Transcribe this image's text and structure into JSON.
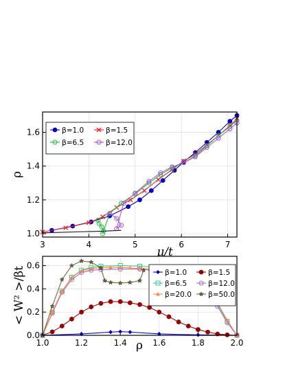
{
  "chart_data": [
    {
      "type": "line",
      "xlabel": "μ/t",
      "ylabel": "ρ",
      "xlim": [
        3.0,
        7.2
      ],
      "ylim": [
        0.98,
        1.72
      ],
      "xticks": [
        "3",
        "4",
        "5",
        "6",
        "7"
      ],
      "yticks": [
        "1.0",
        "1.2",
        "1.4",
        "1.6"
      ],
      "grid": true,
      "legend_position": "top-left",
      "series": [
        {
          "name": "β=1.0",
          "color": "#0000cc",
          "marker": "circle-filled",
          "x": [
            3.2,
            3.65,
            4.05,
            4.45,
            4.85,
            5.1,
            5.35,
            5.6,
            5.85,
            6.05,
            6.3,
            6.55,
            6.8,
            7.05,
            7.2
          ],
          "y": [
            1.02,
            1.045,
            1.07,
            1.105,
            1.16,
            1.2,
            1.255,
            1.315,
            1.375,
            1.425,
            1.48,
            1.54,
            1.6,
            1.665,
            1.7
          ]
        },
        {
          "name": "β=1.5",
          "color": "#ee2222",
          "marker": "x",
          "x": [
            3.0,
            3.5,
            4.0,
            4.3,
            4.6,
            4.9,
            5.2,
            5.5,
            5.8,
            6.05,
            6.3,
            6.55,
            6.8,
            7.05,
            7.2
          ],
          "y": [
            1.01,
            1.035,
            1.065,
            1.1,
            1.155,
            1.2,
            1.255,
            1.32,
            1.38,
            1.43,
            1.47,
            1.525,
            1.58,
            1.64,
            1.68
          ]
        },
        {
          "name": "β=6.5",
          "color": "#22bb44",
          "marker": "circle-open",
          "x": [
            4.2,
            4.22,
            4.28,
            4.32,
            4.3,
            4.45,
            4.7,
            5.0,
            5.3,
            5.55,
            5.8,
            6.05,
            6.3,
            6.55,
            6.8,
            7.05,
            7.2
          ],
          "y": [
            1.08,
            1.06,
            1.04,
            1.015,
            1.0,
            1.12,
            1.18,
            1.235,
            1.3,
            1.35,
            1.39,
            1.42,
            1.46,
            1.52,
            1.58,
            1.635,
            1.67
          ]
        },
        {
          "name": "β=12.0",
          "color": "#aa55dd",
          "marker": "circle-open",
          "x": [
            4.45,
            4.6,
            4.7,
            4.6,
            4.75,
            5.0,
            5.3,
            5.55,
            5.8,
            6.05,
            6.3,
            6.55,
            6.8,
            7.05,
            7.2
          ],
          "y": [
            1.12,
            1.09,
            1.05,
            1.03,
            1.18,
            1.24,
            1.31,
            1.36,
            1.395,
            1.42,
            1.455,
            1.51,
            1.565,
            1.62,
            1.655
          ]
        },
        {
          "name": "",
          "color": "#111111",
          "marker": "none",
          "x": [
            3.0,
            4.3,
            4.7
          ],
          "y": [
            1.005,
            1.015,
            1.02
          ]
        }
      ]
    },
    {
      "type": "line",
      "xlabel": "ρ",
      "ylabel": "< W² >/βt",
      "xlim": [
        1.0,
        2.0
      ],
      "ylim": [
        0.0,
        0.68
      ],
      "xticks": [
        "1.0",
        "1.2",
        "1.4",
        "1.6",
        "1.8",
        "2.0"
      ],
      "yticks": [
        "0.0",
        "0.2",
        "0.4",
        "0.6"
      ],
      "grid": true,
      "legend_position": "bottom-right",
      "series": [
        {
          "name": "β=1.0",
          "color": "#0000cc",
          "marker": "diamond-filled",
          "x": [
            1.0,
            1.2,
            1.35,
            1.4,
            1.45,
            1.6,
            1.8,
            2.0
          ],
          "y": [
            0.0,
            0.012,
            0.028,
            0.032,
            0.028,
            0.012,
            0.004,
            0.0
          ]
        },
        {
          "name": "β=1.5",
          "color": "#990000",
          "marker": "circle-filled",
          "x": [
            1.0,
            1.05,
            1.1,
            1.15,
            1.2,
            1.25,
            1.3,
            1.35,
            1.4,
            1.45,
            1.5,
            1.55,
            1.6,
            1.65,
            1.7,
            1.75,
            1.8,
            1.85,
            1.9,
            1.95,
            2.0
          ],
          "y": [
            0.0,
            0.03,
            0.08,
            0.14,
            0.2,
            0.245,
            0.275,
            0.29,
            0.29,
            0.28,
            0.265,
            0.24,
            0.2,
            0.16,
            0.115,
            0.08,
            0.05,
            0.028,
            0.012,
            0.004,
            0.0
          ]
        },
        {
          "name": "β=6.5",
          "color": "#33cc88",
          "marker": "square-open",
          "x": [
            1.0,
            1.05,
            1.1,
            1.15,
            1.2,
            1.25,
            1.3,
            1.4,
            1.5,
            1.6,
            1.7,
            1.8,
            1.85,
            1.9,
            1.95,
            2.0
          ],
          "y": [
            0.0,
            0.2,
            0.38,
            0.5,
            0.56,
            0.585,
            0.595,
            0.6,
            0.595,
            0.58,
            0.56,
            0.5,
            0.4,
            0.27,
            0.12,
            0.0
          ]
        },
        {
          "name": "β=12.0",
          "color": "#aa66dd",
          "marker": "circle-open",
          "x": [
            1.0,
            1.05,
            1.1,
            1.15,
            1.2,
            1.25,
            1.3,
            1.4,
            1.5,
            1.6,
            1.7,
            1.8,
            1.85,
            1.9,
            1.95,
            2.0
          ],
          "y": [
            0.0,
            0.19,
            0.37,
            0.48,
            0.54,
            0.56,
            0.565,
            0.57,
            0.57,
            0.56,
            0.545,
            0.48,
            0.38,
            0.25,
            0.11,
            0.0
          ]
        },
        {
          "name": "β=20.0",
          "color": "#ff8844",
          "marker": "triangle-filled",
          "x": [
            1.0,
            1.05,
            1.1,
            1.15,
            1.2,
            1.25,
            1.3,
            1.35,
            1.4,
            1.45,
            1.5,
            1.55,
            1.6,
            1.65,
            1.7,
            1.75,
            1.8,
            1.85,
            1.9,
            1.95,
            2.0
          ],
          "y": [
            0.0,
            0.2,
            0.38,
            0.5,
            0.555,
            0.575,
            0.58,
            0.585,
            0.585,
            0.58,
            0.575,
            0.57,
            0.565,
            0.555,
            0.54,
            0.52,
            0.48,
            0.4,
            0.28,
            0.13,
            0.0
          ]
        },
        {
          "name": "β=50.0",
          "color": "#776633",
          "marker": "star",
          "x": [
            1.0,
            1.05,
            1.1,
            1.15,
            1.2,
            1.25,
            1.3,
            1.32,
            1.35,
            1.4,
            1.45,
            1.5,
            1.52
          ],
          "y": [
            0.0,
            0.25,
            0.48,
            0.6,
            0.64,
            0.63,
            0.58,
            0.47,
            0.455,
            0.45,
            0.455,
            0.47,
            0.56
          ]
        }
      ]
    }
  ]
}
